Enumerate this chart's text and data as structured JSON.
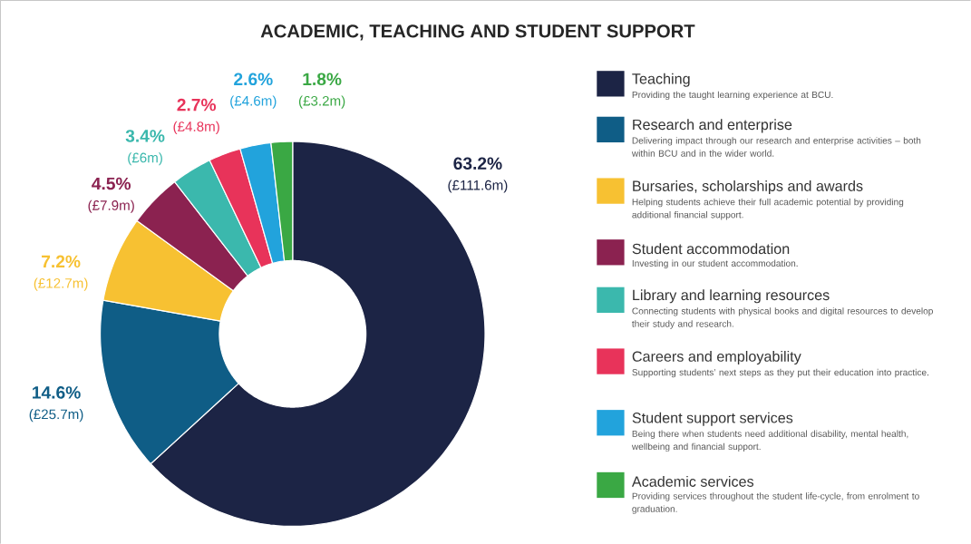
{
  "chart_data": {
    "type": "donut",
    "title": "ACADEMIC, TEACHING AND STUDENT SUPPORT",
    "categories": [
      "Teaching",
      "Research and enterprise",
      "Bursaries, scholarships and awards",
      "Student accommodation",
      "Library and learning resources",
      "Careers and employability",
      "Student support services",
      "Academic services"
    ],
    "values": [
      63.2,
      14.6,
      7.2,
      4.5,
      3.4,
      2.7,
      2.6,
      1.8
    ],
    "colors": [
      "#1c2445",
      "#0f5d86",
      "#f7c132",
      "#8b2250",
      "#3bb8ad",
      "#e8335a",
      "#22a3dc",
      "#3aa844"
    ],
    "value_labels": [
      "63.2%",
      "14.6%",
      "7.2%",
      "4.5%",
      "3.4%",
      "2.7%",
      "2.6%",
      "1.8%"
    ],
    "annotations": [
      "(£111.6m)",
      "(£25.7m)",
      "(£12.7m)",
      "(£7.9m)",
      "(£6m)",
      "(£4.8m)",
      "(£4.6m)",
      "(£3.2m)",
      "Providing the taught learning experience at BCU.",
      "Delivering impact through our research and enterprise activities – both within BCU and in the wider world.",
      "Helping students achieve their full academic potential by providing additional financial support.",
      "Investing in our student accommodation.",
      "Connecting students with physical books and digital resources to develop their study and research.",
      "Supporting students’ next steps as they put their education into practice.",
      "Being there when students need additional disability, mental health, wellbeing and financial support.",
      "Providing services throughout the student life-cycle, from enrolment to graduation."
    ],
    "legend": "right"
  }
}
